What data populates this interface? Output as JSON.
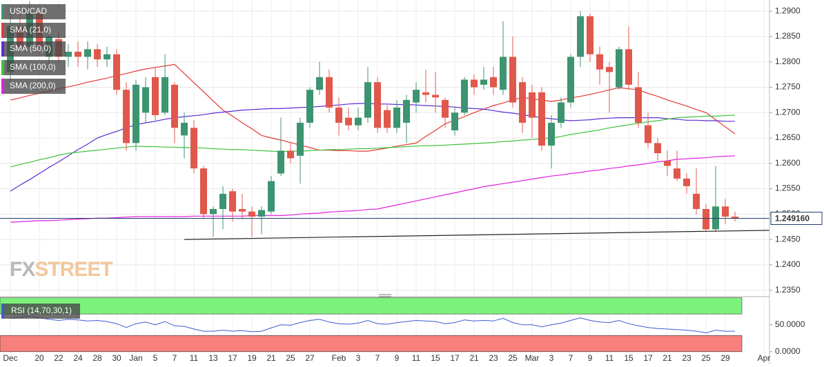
{
  "chart_data": [
    {
      "type": "candlestick",
      "name": "USD/CAD",
      "up_color": "#3d9470",
      "down_color": "#e0584b",
      "categories": [
        "Dec",
        null,
        null,
        "20",
        null,
        "22",
        null,
        "24",
        null,
        "28",
        null,
        "30",
        null,
        "Jan",
        null,
        "5",
        null,
        "7",
        null,
        "11",
        null,
        "13",
        null,
        "17",
        null,
        "19",
        null,
        "21",
        null,
        "25",
        null,
        "27",
        null,
        null,
        "Feb",
        null,
        "3",
        null,
        "7",
        null,
        "9",
        null,
        "11",
        null,
        "15",
        null,
        "17",
        null,
        "21",
        null,
        "23",
        null,
        "25",
        null,
        "Mar",
        null,
        "3",
        null,
        "7",
        null,
        "9",
        null,
        "11",
        null,
        "15",
        null,
        "17",
        null,
        "21",
        null,
        "23",
        null,
        "25",
        null,
        "29",
        null,
        null,
        null,
        "Apr"
      ],
      "open": [
        1.278,
        1.287,
        1.283,
        1.2895,
        1.281,
        1.2845,
        1.281,
        1.282,
        1.281,
        1.2825,
        1.2805,
        1.2815,
        1.2745,
        1.264,
        1.27,
        1.277,
        1.27,
        1.2755,
        1.2655,
        1.267,
        1.259,
        1.25,
        1.251,
        1.2545,
        1.251,
        1.2505,
        1.2495,
        1.2505,
        1.258,
        1.2625,
        1.2615,
        1.268,
        1.2745,
        1.277,
        1.271,
        1.269,
        1.2675,
        1.269,
        1.276,
        1.2705,
        1.267,
        1.268,
        1.272,
        1.274,
        1.2735,
        1.2725,
        1.2665,
        1.27,
        1.2765,
        1.2755,
        1.277,
        1.2745,
        1.281,
        1.276,
        1.274,
        1.274,
        1.2635,
        1.268,
        1.272,
        1.281,
        1.289,
        1.2815,
        1.279,
        1.275,
        1.2825,
        1.275,
        1.2675,
        1.264,
        1.2605,
        1.259,
        1.257,
        1.254,
        1.251,
        1.247,
        1.2515,
        1.2495,
        null,
        null,
        null
      ],
      "high": [
        1.29,
        1.291,
        1.292,
        1.2905,
        1.286,
        1.286,
        1.2835,
        1.284,
        1.284,
        1.2835,
        1.283,
        1.2825,
        1.276,
        1.2765,
        1.277,
        1.279,
        1.2815,
        1.276,
        1.27,
        1.2685,
        1.2595,
        1.2515,
        1.2555,
        1.255,
        1.254,
        1.2515,
        1.2515,
        1.2575,
        1.269,
        1.264,
        1.269,
        1.275,
        1.28,
        1.2785,
        1.273,
        1.271,
        1.271,
        1.279,
        1.277,
        1.2715,
        1.2725,
        1.2735,
        1.276,
        1.2785,
        1.278,
        1.273,
        1.271,
        1.277,
        1.2775,
        1.279,
        1.279,
        1.288,
        1.285,
        1.277,
        1.2755,
        1.275,
        1.2695,
        1.273,
        1.2815,
        1.29,
        1.2895,
        1.283,
        1.28,
        1.283,
        1.287,
        1.278,
        1.27,
        1.265,
        1.2625,
        1.2625,
        1.258,
        1.259,
        1.252,
        1.2595,
        1.253,
        1.2505,
        null,
        null,
        null
      ],
      "low": [
        1.276,
        1.282,
        1.282,
        1.282,
        1.279,
        1.28,
        1.279,
        1.279,
        1.2785,
        1.279,
        1.279,
        1.2735,
        1.2625,
        1.2625,
        1.268,
        1.2685,
        1.2695,
        1.264,
        1.261,
        1.258,
        1.249,
        1.2455,
        1.247,
        1.2485,
        1.249,
        1.2455,
        1.246,
        1.25,
        1.2575,
        1.26,
        1.256,
        1.267,
        1.2735,
        1.27,
        1.2655,
        1.2665,
        1.2665,
        1.268,
        1.266,
        1.266,
        1.266,
        1.264,
        1.27,
        1.272,
        1.27,
        1.267,
        1.2655,
        1.2695,
        1.2735,
        1.2745,
        1.2735,
        1.2735,
        1.271,
        1.266,
        1.265,
        1.2625,
        1.259,
        1.267,
        1.271,
        1.279,
        1.28,
        1.2755,
        1.27,
        1.2745,
        1.2745,
        1.267,
        1.263,
        1.2605,
        1.2575,
        1.2565,
        1.254,
        1.25,
        1.2465,
        1.2465,
        1.248,
        1.2485,
        null,
        null,
        null
      ],
      "close": [
        1.287,
        1.283,
        1.2895,
        1.283,
        1.285,
        1.281,
        1.282,
        1.281,
        1.2825,
        1.2805,
        1.2815,
        1.2745,
        1.264,
        1.2755,
        1.275,
        1.2695,
        1.277,
        1.267,
        1.268,
        1.259,
        1.25,
        1.251,
        1.254,
        1.2505,
        1.2505,
        1.2495,
        1.2508,
        1.2565,
        1.2625,
        1.261,
        1.268,
        1.2745,
        1.277,
        1.271,
        1.268,
        1.2675,
        1.269,
        1.276,
        1.267,
        1.267,
        1.271,
        1.2725,
        1.2745,
        1.2735,
        1.273,
        1.269,
        1.27,
        1.2765,
        1.275,
        1.2765,
        1.275,
        1.281,
        1.272,
        1.268,
        1.269,
        1.2635,
        1.268,
        1.272,
        1.281,
        1.289,
        1.2815,
        1.2785,
        1.278,
        1.2825,
        1.2755,
        1.268,
        1.264,
        1.262,
        1.2595,
        1.257,
        1.2555,
        1.251,
        1.247,
        1.2515,
        1.2495,
        1.24916,
        null,
        null,
        null
      ],
      "series": [
        {
          "name": "SMA (21,0)",
          "color": "#e53935",
          "values": [
            1.2725,
            1.2729,
            1.2734,
            1.2738,
            1.2742,
            1.2747,
            1.2751,
            1.2755,
            1.276,
            1.2764,
            1.2768,
            1.2773,
            1.2777,
            1.2782,
            1.2786,
            1.2789,
            1.2792,
            1.2795,
            1.2777,
            1.2759,
            1.2741,
            1.2723,
            1.2705,
            1.2693,
            1.268,
            1.2668,
            1.2655,
            1.265,
            1.2646,
            1.2641,
            1.2636,
            1.2631,
            1.2626,
            1.2626,
            1.2625,
            1.2625,
            1.2624,
            1.2624,
            1.2627,
            1.263,
            1.2634,
            1.2637,
            1.264,
            1.2653,
            1.2665,
            1.2678,
            1.2685,
            1.2692,
            1.27,
            1.2707,
            1.2714,
            1.2719,
            1.2725,
            1.273,
            1.2727,
            1.2725,
            1.2722,
            1.2725,
            1.2729,
            1.2732,
            1.2736,
            1.274,
            1.2745,
            1.2749,
            1.2747,
            1.2745,
            1.2738,
            1.2732,
            1.2725,
            1.2719,
            1.2713,
            1.2706,
            1.27,
            1.2686,
            1.2672,
            1.2658,
            null,
            null,
            null
          ]
        },
        {
          "name": "SMA (50,0)",
          "color": "#5b2bd6",
          "values": [
            1.2545,
            1.2557,
            1.2568,
            1.258,
            1.2592,
            1.2603,
            1.2615,
            1.2627,
            1.2638,
            1.265,
            1.2657,
            1.2663,
            1.267,
            1.2676,
            1.268,
            1.2683,
            1.2687,
            1.269,
            1.2692,
            1.2694,
            1.2696,
            1.2699,
            1.2701,
            1.2703,
            1.2705,
            1.2706,
            1.2707,
            1.2708,
            1.2708,
            1.2709,
            1.271,
            1.2711,
            1.2712,
            1.2714,
            1.2715,
            1.2717,
            1.2718,
            1.2718,
            1.2717,
            1.2717,
            1.2716,
            1.2716,
            1.2715,
            1.2714,
            1.2713,
            1.2712,
            1.2711,
            1.2709,
            1.2708,
            1.2707,
            1.2704,
            1.2701,
            1.2699,
            1.2696,
            1.2693,
            1.269,
            1.2688,
            1.2686,
            1.2684,
            1.2685,
            1.2686,
            1.2688,
            1.2689,
            1.269,
            1.269,
            1.269,
            1.269,
            1.269,
            1.2688,
            1.2687,
            1.2685,
            1.2685,
            1.2684,
            1.2684,
            1.2683,
            1.2683,
            null,
            null,
            null
          ]
        },
        {
          "name": "SMA (100,0)",
          "color": "#3cc43c",
          "values": [
            1.2593,
            1.2598,
            1.2602,
            1.2607,
            1.2611,
            1.2616,
            1.262,
            1.2622,
            1.2624,
            1.2626,
            1.2628,
            1.263,
            1.2632,
            1.2634,
            1.2633,
            1.2633,
            1.2632,
            1.2632,
            1.2631,
            1.2631,
            1.263,
            1.2629,
            1.2628,
            1.2627,
            1.2627,
            1.2626,
            1.2625,
            1.2624,
            1.2623,
            1.2624,
            1.2624,
            1.2625,
            1.2626,
            1.2627,
            1.2627,
            1.2628,
            1.2629,
            1.2629,
            1.263,
            1.2631,
            1.2632,
            1.2633,
            1.2634,
            1.2635,
            1.2635,
            1.2636,
            1.2637,
            1.2638,
            1.2639,
            1.264,
            1.2641,
            1.2643,
            1.2644,
            1.2646,
            1.2647,
            1.2649,
            1.265,
            1.2653,
            1.2657,
            1.266,
            1.2663,
            1.2666,
            1.267,
            1.2673,
            1.2676,
            1.2679,
            1.2682,
            1.2684,
            1.2687,
            1.269,
            1.2691,
            1.2692,
            1.2693,
            1.2693,
            1.2694,
            1.2695,
            null,
            null,
            null
          ]
        },
        {
          "name": "SMA (200,0)",
          "color": "#e020e0",
          "values": [
            1.2484,
            1.2485,
            1.2486,
            1.2487,
            1.2487,
            1.2488,
            1.2489,
            1.249,
            1.2491,
            1.2492,
            1.2492,
            1.2493,
            1.2494,
            1.2495,
            1.2495,
            1.2495,
            1.2495,
            1.2495,
            1.2495,
            1.2496,
            1.2496,
            1.2496,
            1.2496,
            1.2496,
            1.2496,
            1.2497,
            1.2497,
            1.2497,
            1.2497,
            1.2498,
            1.25,
            1.2501,
            1.2502,
            1.2504,
            1.2505,
            1.2506,
            1.2507,
            1.2509,
            1.251,
            1.2514,
            1.2518,
            1.2522,
            1.2526,
            1.253,
            1.2534,
            1.2538,
            1.2542,
            1.2546,
            1.255,
            1.2554,
            1.2557,
            1.256,
            1.2563,
            1.2566,
            1.2569,
            1.2572,
            1.2575,
            1.2577,
            1.258,
            1.2582,
            1.2585,
            1.2587,
            1.259,
            1.2592,
            1.2595,
            1.2597,
            1.26,
            1.2603,
            1.2605,
            1.2608,
            1.2609,
            1.261,
            1.2611,
            1.2613,
            1.2614,
            1.2615,
            null,
            null,
            null
          ]
        }
      ],
      "current_price": {
        "value": 1.24916,
        "label": "1.249160",
        "color": "#1f3a66"
      },
      "trendline": {
        "x": [
          18,
          79
        ],
        "values": [
          1.245,
          1.2468
        ],
        "color": "#222222"
      },
      "ylim": [
        1.234,
        1.2922
      ],
      "yticks": [
        {
          "value": 1.29,
          "label": "1.2900"
        },
        {
          "value": 1.285,
          "label": "1.2850"
        },
        {
          "value": 1.28,
          "label": "1.2800"
        },
        {
          "value": 1.275,
          "label": "1.2750"
        },
        {
          "value": 1.27,
          "label": "1.2700"
        },
        {
          "value": 1.265,
          "label": "1.2650"
        },
        {
          "value": 1.26,
          "label": "1.2600"
        },
        {
          "value": 1.255,
          "label": "1.2550"
        },
        {
          "value": 1.25,
          "label": "1.2500"
        },
        {
          "value": 1.245,
          "label": "1.2450"
        },
        {
          "value": 1.24,
          "label": "1.2400"
        },
        {
          "value": 1.235,
          "label": "1.2350"
        }
      ],
      "grid": true,
      "legend": "top-left",
      "watermark": {
        "prefix": "FX",
        "suffix": "STREET"
      }
    },
    {
      "type": "line",
      "name": "RSI (14,70,30,1)",
      "color": "#3b5bd0",
      "values": [
        62,
        64,
        66,
        63,
        60,
        58,
        60,
        59,
        57,
        58,
        56,
        52,
        45,
        52,
        55,
        50,
        56,
        48,
        47,
        42,
        38,
        38,
        40,
        38,
        39,
        37,
        38,
        44,
        50,
        49,
        54,
        58,
        60,
        55,
        52,
        51,
        53,
        58,
        52,
        51,
        54,
        56,
        58,
        57,
        56,
        52,
        54,
        59,
        57,
        58,
        57,
        62,
        54,
        50,
        50,
        46,
        50,
        53,
        58,
        63,
        58,
        55,
        54,
        58,
        52,
        48,
        45,
        43,
        42,
        41,
        40,
        38,
        35,
        40,
        38,
        38,
        null,
        null,
        null
      ],
      "bands": [
        {
          "from": 70,
          "to": 100,
          "color": "#7cf27a"
        },
        {
          "from": 0,
          "to": 30,
          "color": "#f77f7c"
        }
      ],
      "ylim": [
        -22,
        106
      ],
      "yticks": [
        {
          "value": 50,
          "label": "50.0000"
        },
        {
          "value": 0,
          "label": "0.0000"
        }
      ]
    }
  ]
}
